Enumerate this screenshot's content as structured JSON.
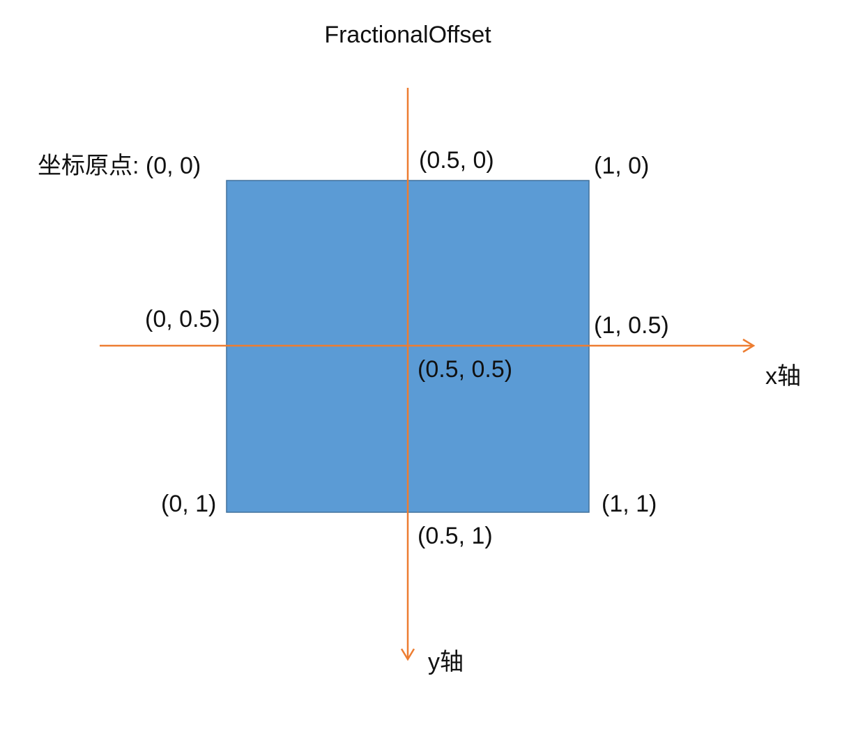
{
  "title": "FractionalOffset",
  "colors": {
    "box_fill": "#5b9bd5",
    "box_stroke": "#41719c",
    "axis": "#ed7d31",
    "text": "#111111",
    "background": "#ffffff"
  },
  "axes": {
    "x_label": "x轴",
    "y_label": "y轴"
  },
  "points": {
    "origin_label": "坐标原点: (0, 0)",
    "top_center": "(0.5, 0)",
    "top_right": "(1, 0)",
    "mid_left": "(0, 0.5)",
    "mid_right": "(1, 0.5)",
    "center": "(0.5, 0.5)",
    "bottom_left": "(0, 1)",
    "bottom_center": "(0.5, 1)",
    "bottom_right": "(1, 1)"
  }
}
